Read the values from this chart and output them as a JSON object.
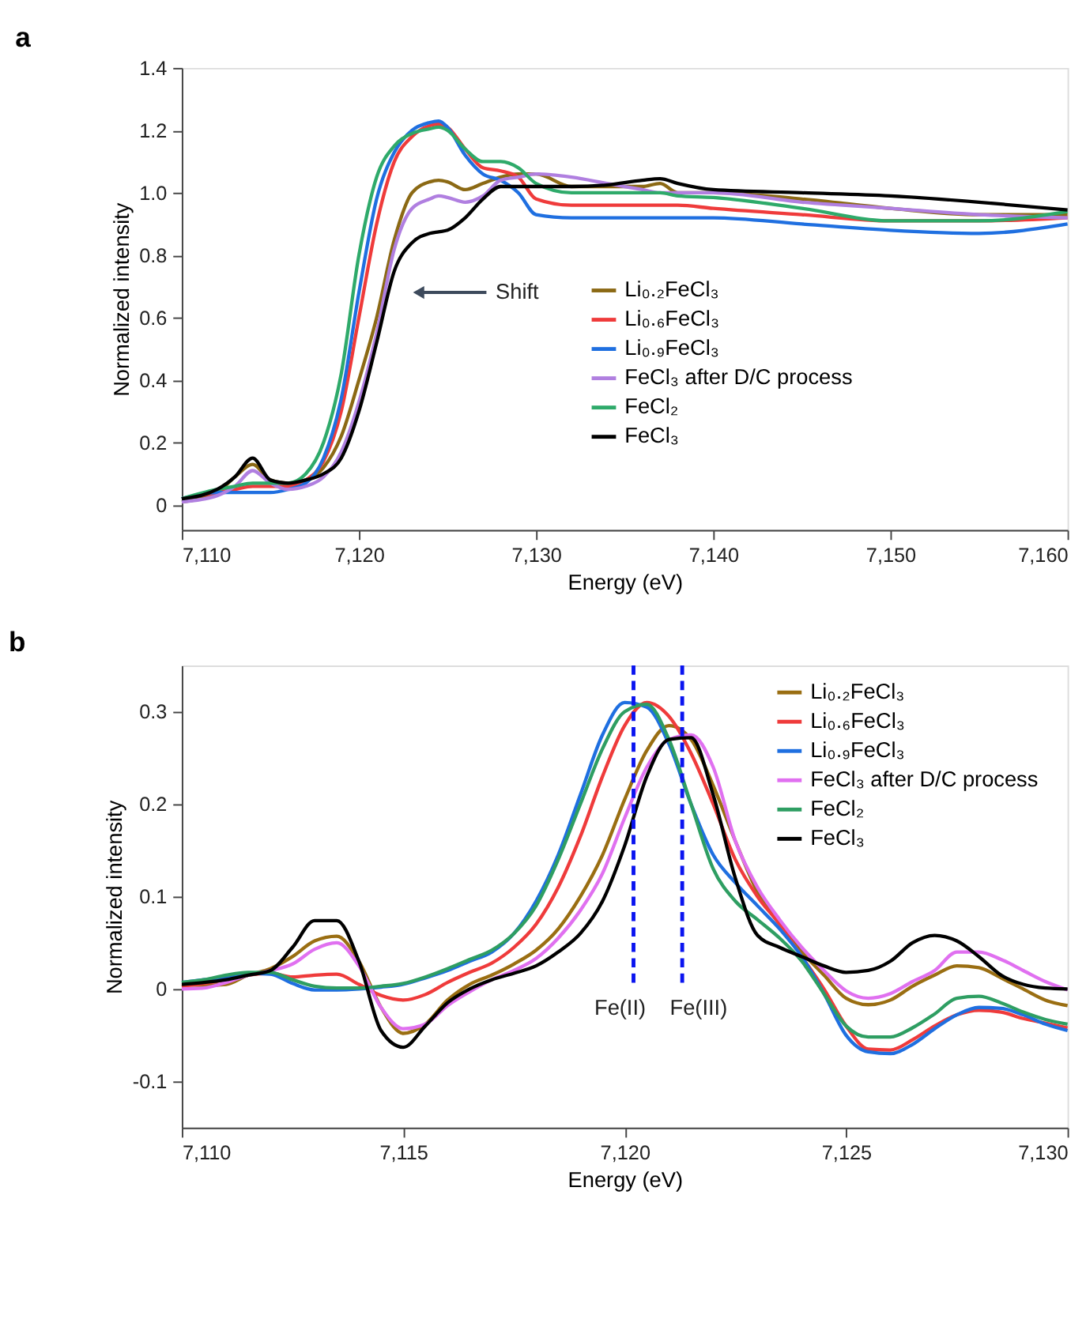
{
  "chart_data": [
    {
      "type": "line",
      "title": "a",
      "xlabel": "Energy (eV)",
      "ylabel": "Normalized intensity",
      "x": [
        7110,
        7112,
        7113,
        7114,
        7115,
        7116,
        7117,
        7118,
        7119,
        7120,
        7121,
        7122,
        7123,
        7124,
        7124.5,
        7125,
        7126,
        7127,
        7128,
        7129,
        7130,
        7132,
        7134,
        7136,
        7137,
        7138,
        7140,
        7145,
        7150,
        7155,
        7160
      ],
      "series": [
        {
          "name": "Li₀.₂FeCl₃",
          "color": "#8b6914",
          "values": [
            0.01,
            0.04,
            0.09,
            0.13,
            0.08,
            0.07,
            0.08,
            0.12,
            0.22,
            0.4,
            0.6,
            0.85,
            1.0,
            1.035,
            1.04,
            1.035,
            1.01,
            1.03,
            1.05,
            1.06,
            1.06,
            1.02,
            1.02,
            1.02,
            1.03,
            1.0,
            1.0,
            0.98,
            0.95,
            0.93,
            0.93
          ]
        },
        {
          "name": "Li₀.₆FeCl₃",
          "color": "#ef3b3b",
          "values": [
            0.02,
            0.04,
            0.05,
            0.06,
            0.06,
            0.06,
            0.08,
            0.14,
            0.3,
            0.6,
            0.9,
            1.1,
            1.18,
            1.215,
            1.22,
            1.21,
            1.14,
            1.08,
            1.07,
            1.05,
            0.98,
            0.96,
            0.96,
            0.96,
            0.96,
            0.96,
            0.95,
            0.93,
            0.91,
            0.91,
            0.92
          ]
        },
        {
          "name": "Li₀.₉FeCl₃",
          "color": "#1f6fe0",
          "values": [
            0.02,
            0.04,
            0.04,
            0.04,
            0.04,
            0.05,
            0.07,
            0.15,
            0.34,
            0.68,
            0.98,
            1.13,
            1.2,
            1.225,
            1.23,
            1.21,
            1.12,
            1.06,
            1.04,
            1.0,
            0.93,
            0.92,
            0.92,
            0.92,
            0.92,
            0.92,
            0.92,
            0.9,
            0.88,
            0.87,
            0.9
          ]
        },
        {
          "name": "FeCl₃ after D/C process",
          "color": "#b07fe0",
          "values": [
            0.01,
            0.03,
            0.06,
            0.11,
            0.07,
            0.05,
            0.06,
            0.09,
            0.17,
            0.33,
            0.55,
            0.82,
            0.95,
            0.98,
            0.99,
            0.985,
            0.97,
            0.99,
            1.04,
            1.05,
            1.06,
            1.05,
            1.03,
            1.01,
            1.0,
            1.0,
            1.0,
            0.97,
            0.95,
            0.93,
            0.92
          ]
        },
        {
          "name": "FeCl₂",
          "color": "#2eaa6a",
          "values": [
            0.02,
            0.05,
            0.06,
            0.07,
            0.07,
            0.07,
            0.1,
            0.2,
            0.42,
            0.8,
            1.05,
            1.15,
            1.19,
            1.205,
            1.21,
            1.2,
            1.14,
            1.1,
            1.1,
            1.08,
            1.03,
            1.0,
            1.0,
            1.0,
            1.0,
            0.99,
            0.985,
            0.95,
            0.91,
            0.91,
            0.94
          ]
        },
        {
          "name": "FeCl₃",
          "color": "#000000",
          "values": [
            0.02,
            0.05,
            0.09,
            0.15,
            0.08,
            0.07,
            0.08,
            0.1,
            0.15,
            0.3,
            0.52,
            0.75,
            0.84,
            0.87,
            0.875,
            0.88,
            0.92,
            0.98,
            1.02,
            1.02,
            1.02,
            1.02,
            1.025,
            1.04,
            1.045,
            1.03,
            1.01,
            1.0,
            0.99,
            0.97,
            0.945
          ]
        }
      ],
      "xlim": [
        7110,
        7160
      ],
      "xticks": [
        {
          "value": 7110,
          "label": "7,110"
        },
        {
          "value": 7120,
          "label": "7,120"
        },
        {
          "value": 7130,
          "label": "7,130"
        },
        {
          "value": 7140,
          "label": "7,140"
        },
        {
          "value": 7150,
          "label": "7,150"
        },
        {
          "value": 7160,
          "label": "7,160"
        }
      ],
      "ylim": [
        -0.08,
        1.4
      ],
      "yticks": [
        0,
        0.2,
        0.4,
        0.6,
        0.8,
        {
          "value": 1,
          "label": "1.0"
        },
        1.2,
        1.4
      ],
      "annotations": [
        "Shift"
      ],
      "legend": "center",
      "grid": false,
      "marker": "none",
      "line_style": "solid"
    },
    {
      "type": "line",
      "title": "b",
      "xlabel": "Energy (eV)",
      "ylabel": "Normalized intensity",
      "x": [
        7110,
        7110.5,
        7111,
        7111.5,
        7112,
        7112.5,
        7113,
        7113.5,
        7114,
        7114.5,
        7115,
        7115.5,
        7116,
        7116.5,
        7117,
        7117.5,
        7118,
        7118.5,
        7119,
        7119.5,
        7120,
        7120.5,
        7121,
        7121.5,
        7122,
        7122.5,
        7123,
        7123.5,
        7124,
        7124.5,
        7125,
        7125.5,
        7126,
        7126.5,
        7127,
        7127.5,
        7128,
        7128.5,
        7129,
        7129.5,
        7130
      ],
      "series": [
        {
          "name": "Li₀.₂FeCl₃",
          "color": "#9a6e12",
          "values": [
            0.005,
            0.004,
            0.005,
            0.015,
            0.022,
            0.035,
            0.052,
            0.057,
            0.03,
            -0.02,
            -0.048,
            -0.038,
            -0.012,
            0.005,
            0.015,
            0.027,
            0.042,
            0.065,
            0.1,
            0.145,
            0.205,
            0.258,
            0.285,
            0.27,
            0.22,
            0.16,
            0.105,
            0.07,
            0.04,
            0.015,
            -0.01,
            -0.017,
            -0.012,
            0.003,
            0.015,
            0.025,
            0.023,
            0.012,
            0.0,
            -0.012,
            -0.018
          ]
        },
        {
          "name": "Li₀.₆FeCl₃",
          "color": "#ef3b3b",
          "values": [
            0.003,
            0.006,
            0.01,
            0.015,
            0.017,
            0.013,
            0.015,
            0.016,
            0.005,
            -0.007,
            -0.012,
            -0.006,
            0.007,
            0.018,
            0.028,
            0.045,
            0.07,
            0.11,
            0.165,
            0.23,
            0.285,
            0.31,
            0.295,
            0.255,
            0.2,
            0.14,
            0.1,
            0.07,
            0.035,
            0.0,
            -0.04,
            -0.065,
            -0.066,
            -0.055,
            -0.04,
            -0.028,
            -0.023,
            -0.025,
            -0.032,
            -0.037,
            -0.042
          ]
        },
        {
          "name": "Li₀.₉FeCl₃",
          "color": "#1f6fe0",
          "values": [
            0.007,
            0.01,
            0.013,
            0.017,
            0.016,
            0.006,
            -0.001,
            -0.001,
            0.0,
            0.002,
            0.005,
            0.012,
            0.02,
            0.03,
            0.04,
            0.06,
            0.095,
            0.145,
            0.21,
            0.275,
            0.31,
            0.305,
            0.265,
            0.2,
            0.145,
            0.115,
            0.09,
            0.065,
            0.035,
            -0.005,
            -0.05,
            -0.068,
            -0.07,
            -0.06,
            -0.043,
            -0.028,
            -0.02,
            -0.021,
            -0.028,
            -0.038,
            -0.045
          ]
        },
        {
          "name": "FeCl₃ after D/C process",
          "color": "#e070f0",
          "values": [
            0.0,
            0.001,
            0.007,
            0.015,
            0.02,
            0.027,
            0.043,
            0.05,
            0.025,
            -0.02,
            -0.043,
            -0.038,
            -0.018,
            -0.003,
            0.01,
            0.02,
            0.033,
            0.055,
            0.085,
            0.125,
            0.185,
            0.24,
            0.27,
            0.275,
            0.24,
            0.16,
            0.11,
            0.075,
            0.045,
            0.02,
            -0.002,
            -0.01,
            -0.005,
            0.008,
            0.02,
            0.04,
            0.04,
            0.032,
            0.02,
            0.008,
            -0.001
          ]
        },
        {
          "name": "FeCl₂",
          "color": "#2e9e62",
          "values": [
            0.007,
            0.01,
            0.015,
            0.018,
            0.018,
            0.01,
            0.003,
            0.001,
            0.001,
            0.003,
            0.006,
            0.013,
            0.022,
            0.032,
            0.042,
            0.06,
            0.09,
            0.14,
            0.2,
            0.26,
            0.3,
            0.308,
            0.27,
            0.2,
            0.13,
            0.095,
            0.075,
            0.055,
            0.03,
            -0.005,
            -0.04,
            -0.052,
            -0.052,
            -0.042,
            -0.027,
            -0.01,
            -0.008,
            -0.015,
            -0.025,
            -0.033,
            -0.038
          ]
        },
        {
          "name": "FeCl₃",
          "color": "#000000",
          "values": [
            0.005,
            0.007,
            0.01,
            0.015,
            0.02,
            0.045,
            0.074,
            0.074,
            0.03,
            -0.045,
            -0.063,
            -0.04,
            -0.015,
            0.0,
            0.01,
            0.017,
            0.025,
            0.04,
            0.06,
            0.095,
            0.155,
            0.23,
            0.27,
            0.272,
            0.21,
            0.12,
            0.058,
            0.045,
            0.035,
            0.025,
            0.018,
            0.02,
            0.03,
            0.05,
            0.058,
            0.052,
            0.035,
            0.015,
            0.005,
            0.001,
            0.0
          ]
        }
      ],
      "xlim": [
        7110,
        7130
      ],
      "xticks": [
        {
          "value": 7110,
          "label": "7,110"
        },
        {
          "value": 7115,
          "label": "7,115"
        },
        {
          "value": 7120,
          "label": "7,120"
        },
        {
          "value": 7125,
          "label": "7,125"
        },
        {
          "value": 7130,
          "label": "7,130"
        }
      ],
      "ylim": [
        -0.15,
        0.35
      ],
      "yticks": [
        -0.1,
        0,
        0.1,
        0.2,
        0.3
      ],
      "ref_lines": [
        {
          "axis": "x",
          "value": 7120.2,
          "label": "Fe(II)",
          "color": "#0a14f0",
          "line_style": "dashed"
        },
        {
          "axis": "x",
          "value": 7121.3,
          "label": "Fe(III)",
          "color": "#0a14f0",
          "line_style": "dashed"
        }
      ],
      "legend": "top right",
      "grid": false,
      "marker": "none",
      "line_style": "solid"
    }
  ]
}
